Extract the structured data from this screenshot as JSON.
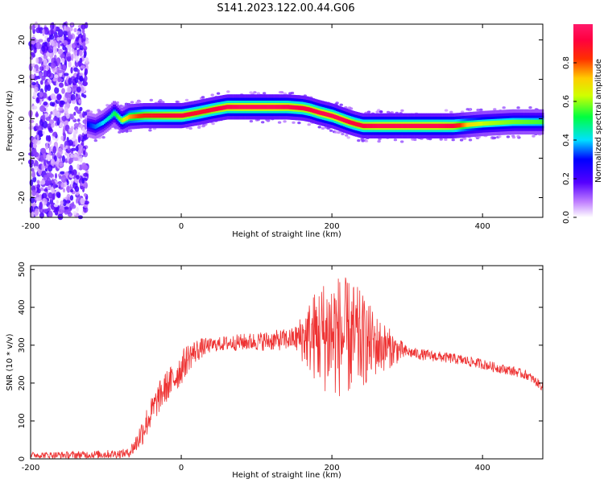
{
  "figure": {
    "title": "S141.2023.122.00.44.G06"
  },
  "colors": {
    "snr_line": "#ee3333",
    "axis": "#000000",
    "background": "#ffffff"
  },
  "chart_data": [
    {
      "type": "heatmap",
      "name": "spectrogram",
      "xlabel": "Height of straight line (km)",
      "ylabel": "Frequency (Hz)",
      "xlim": [
        -200,
        480
      ],
      "ylim": [
        -25,
        24
      ],
      "xticks": [
        -200,
        0,
        200,
        400
      ],
      "yticks": [
        -20,
        -10,
        0,
        10,
        20
      ],
      "colorbar": {
        "label": "Normalized spectral amplitude",
        "range": [
          0,
          1
        ],
        "ticks": [
          "0.0",
          "0.2",
          "0.4",
          "0.6",
          "0.8"
        ],
        "colormap": "rainbow (white → purple → blue → cyan → green → yellow → orange → red → pink)"
      },
      "ridge": {
        "x": [
          -125,
          -115,
          -105,
          -95,
          -90,
          -85,
          -80,
          -70,
          -50,
          -20,
          0,
          20,
          40,
          60,
          80,
          100,
          120,
          140,
          160,
          170,
          180,
          190,
          200,
          210,
          220,
          230,
          240,
          260,
          300,
          340,
          360,
          380,
          400,
          420,
          440,
          480
        ],
        "frequency": [
          -1.5,
          -2.0,
          -1.0,
          0.5,
          1.5,
          0.5,
          -0.5,
          0.5,
          0.8,
          0.8,
          0.8,
          1.5,
          2.3,
          3.0,
          3.0,
          3.0,
          3.0,
          3.0,
          2.7,
          2.3,
          1.7,
          1.2,
          0.7,
          0.0,
          -0.7,
          -1.3,
          -1.8,
          -1.8,
          -1.8,
          -1.8,
          -1.8,
          -1.5,
          -1.2,
          -1.0,
          -0.8,
          -0.8
        ],
        "peak_amplitude": [
          0.3,
          0.35,
          0.4,
          0.45,
          0.5,
          0.55,
          0.6,
          0.75,
          0.85,
          0.9,
          0.92,
          0.88,
          0.9,
          0.95,
          0.97,
          0.97,
          0.97,
          0.95,
          0.92,
          0.92,
          0.94,
          0.95,
          0.95,
          0.95,
          0.93,
          0.9,
          0.92,
          0.95,
          0.95,
          0.95,
          0.92,
          0.7,
          0.62,
          0.6,
          0.58,
          0.55
        ]
      },
      "noise_region_x": [
        -200,
        -125
      ]
    },
    {
      "type": "line",
      "name": "snr",
      "xlabel": "Height of straight line (km)",
      "ylabel": "SNR (10 * v/v)",
      "xlim": [
        -200,
        480
      ],
      "ylim": [
        0,
        510
      ],
      "xticks": [
        -200,
        0,
        200,
        400
      ],
      "yticks": [
        0,
        100,
        200,
        300,
        400,
        500
      ],
      "series": [
        {
          "baseline_x": [
            -200,
            -150,
            -100,
            -70,
            -60,
            -50,
            -40,
            -30,
            -20,
            -10,
            0,
            10,
            20,
            30,
            40,
            60,
            80,
            100,
            120,
            140,
            160,
            180,
            200,
            220,
            240,
            260,
            280,
            300,
            320,
            340,
            360,
            380,
            400,
            420,
            440,
            460,
            480
          ],
          "baseline_y": [
            10,
            10,
            12,
            15,
            40,
            80,
            120,
            160,
            190,
            210,
            240,
            270,
            285,
            295,
            300,
            305,
            308,
            310,
            312,
            315,
            320,
            325,
            330,
            320,
            312,
            300,
            290,
            282,
            275,
            270,
            265,
            258,
            250,
            240,
            232,
            220,
            190
          ],
          "noise_amplitude_x": [
            -200,
            -70,
            -50,
            0,
            40,
            150,
            180,
            200,
            230,
            260,
            300,
            480
          ],
          "noise_amplitude_y": [
            8,
            12,
            40,
            45,
            18,
            30,
            130,
            170,
            150,
            80,
            15,
            12
          ]
        }
      ]
    }
  ]
}
